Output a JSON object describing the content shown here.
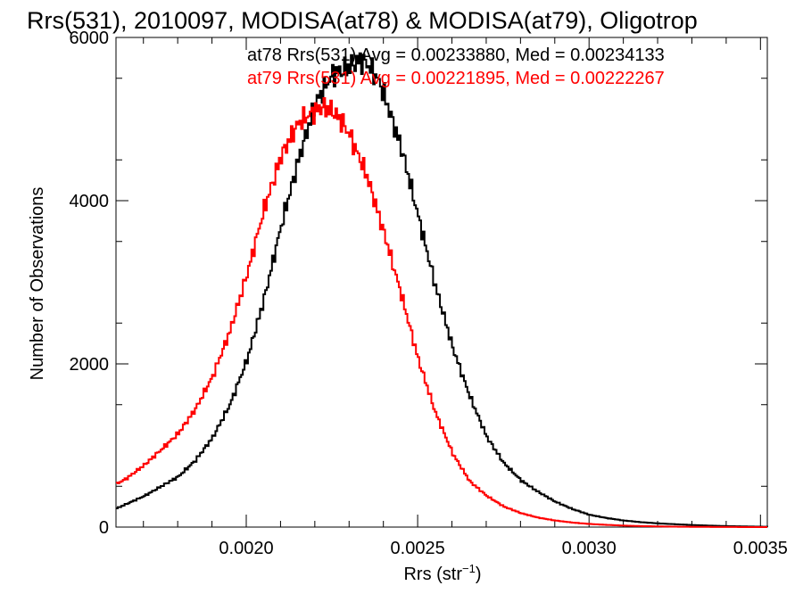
{
  "chart_data": {
    "type": "line",
    "title": "Rrs(531), 2010097, MODISA(at78) & MODISA(at79), Oligotrop",
    "xlabel_main": "Rrs (str",
    "xlabel_sup": "−1",
    "xlabel_close": ")",
    "ylabel": "Number of Observations",
    "xlim": [
      0.00162,
      0.00352
    ],
    "ylim": [
      0,
      6000
    ],
    "x_ticks": [
      {
        "value": 0.002,
        "label": "0.0020"
      },
      {
        "value": 0.0025,
        "label": "0.0025"
      },
      {
        "value": 0.003,
        "label": "0.0030"
      },
      {
        "value": 0.0035,
        "label": "0.0035"
      }
    ],
    "y_ticks": [
      {
        "value": 0,
        "label": "0"
      },
      {
        "value": 2000,
        "label": "2000"
      },
      {
        "value": 4000,
        "label": "4000"
      },
      {
        "value": 6000,
        "label": "6000"
      }
    ],
    "step_plot": true,
    "annotations": [
      {
        "text": "at78 Rrs(531) Avg = 0.00233880, Med = 0.00234133",
        "color": "#000000"
      },
      {
        "text": "at79 Rrs(531) Avg = 0.00221895, Med = 0.00222267",
        "color": "#ff0000"
      }
    ],
    "series": [
      {
        "color": "#000000",
        "x": [
          0.00162,
          0.0017,
          0.00175,
          0.0018,
          0.00185,
          0.0019,
          0.00195,
          0.002,
          0.00205,
          0.0021,
          0.00215,
          0.0022,
          0.00225,
          0.00228,
          0.0023,
          0.00233,
          0.00235,
          0.00238,
          0.0024,
          0.00243,
          0.00245,
          0.0025,
          0.00255,
          0.0026,
          0.00265,
          0.0027,
          0.00275,
          0.0028,
          0.00285,
          0.0029,
          0.00295,
          0.003,
          0.00305,
          0.0031,
          0.00315,
          0.0032,
          0.00325,
          0.0033,
          0.00335,
          0.0034,
          0.00345,
          0.0035,
          0.00352
        ],
        "y": [
          230,
          380,
          500,
          620,
          820,
          1100,
          1500,
          2050,
          2800,
          3700,
          4500,
          5200,
          5550,
          5600,
          5650,
          5720,
          5680,
          5500,
          5300,
          4900,
          4650,
          3800,
          2950,
          2200,
          1600,
          1100,
          780,
          570,
          430,
          310,
          220,
          150,
          110,
          80,
          60,
          45,
          35,
          25,
          18,
          12,
          8,
          5,
          3
        ]
      },
      {
        "color": "#ff0000",
        "x": [
          0.00162,
          0.00165,
          0.0017,
          0.00175,
          0.0018,
          0.00185,
          0.0019,
          0.00195,
          0.002,
          0.00205,
          0.0021,
          0.00213,
          0.00215,
          0.00218,
          0.0022,
          0.00222,
          0.00225,
          0.00228,
          0.0023,
          0.00235,
          0.0024,
          0.00245,
          0.0025,
          0.00255,
          0.0026,
          0.00265,
          0.0027,
          0.00275,
          0.0028,
          0.00285,
          0.0029,
          0.00295,
          0.003,
          0.00305,
          0.0031,
          0.00315,
          0.0032,
          0.00325,
          0.0033,
          0.0034,
          0.00352
        ],
        "y": [
          530,
          600,
          760,
          950,
          1150,
          1450,
          1850,
          2400,
          3100,
          3900,
          4550,
          4800,
          4950,
          5050,
          5100,
          5150,
          5100,
          4950,
          4800,
          4300,
          3600,
          2850,
          2050,
          1400,
          900,
          560,
          380,
          250,
          170,
          115,
          80,
          55,
          38,
          27,
          18,
          12,
          8,
          5,
          3,
          1,
          0
        ]
      }
    ]
  }
}
